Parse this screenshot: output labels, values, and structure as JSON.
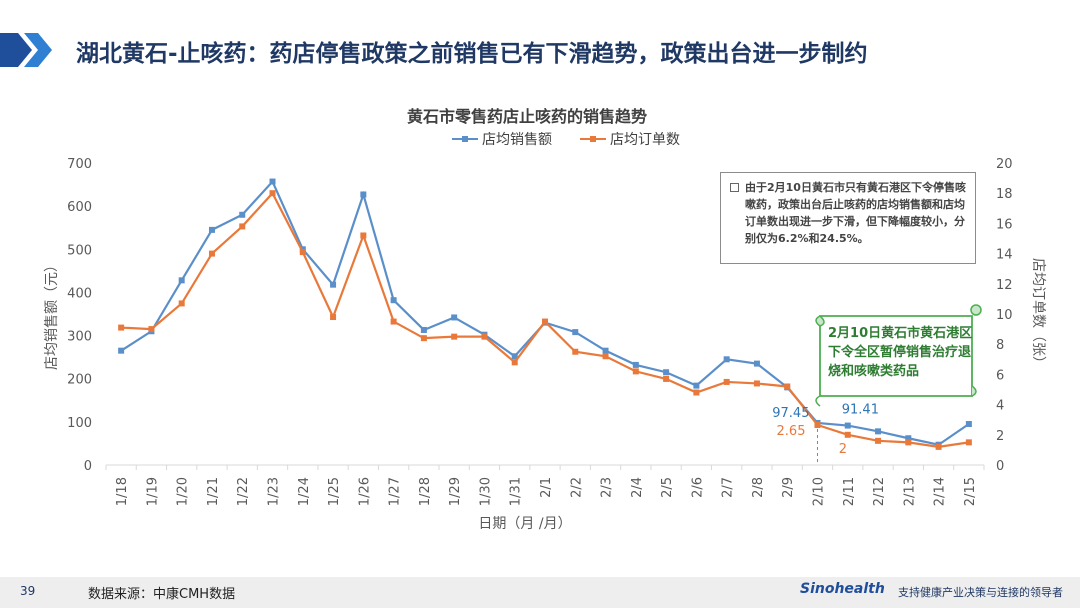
{
  "header": {
    "title": "湖北黄石-止咳药：药店停售政策之前销售已有下滑趋势，政策出台进一步制约"
  },
  "footer": {
    "page_number": "39",
    "source": "数据来源：中康CMH数据",
    "logo": "Sinohealth",
    "slogan": "支持健康产业决策与连接的领导者"
  },
  "callout": {
    "text": "由于2月10日黄石市只有黄石港区下令停售咳嗽药，政策出台后止咳药的店均销售额和店均订单数出现进一步下滑，但下降幅度较小，分别仅为6.2%和24.5%。"
  },
  "scroll_note": {
    "text": "2月10日黄石市黄石港区下令全区暂停销售治疗退烧和咳嗽类药品"
  },
  "chart_data": {
    "type": "line",
    "title": "黄石市零售药店止咳药的销售趋势",
    "xlabel": "日期（月 /月）",
    "ylabel": "店均销售额（元）",
    "y2label": "店均订单数（张）",
    "ylim": [
      0,
      700
    ],
    "y2lim": [
      0,
      20
    ],
    "yticks": [
      0,
      100,
      200,
      300,
      400,
      500,
      600,
      700
    ],
    "y2ticks": [
      0,
      2,
      4,
      6,
      8,
      10,
      12,
      14,
      16,
      18,
      20
    ],
    "legend_position": "top",
    "categories": [
      "1/18",
      "1/19",
      "1/20",
      "1/21",
      "1/22",
      "1/23",
      "1/24",
      "1/25",
      "1/26",
      "1/27",
      "1/28",
      "1/29",
      "1/30",
      "1/31",
      "2/1",
      "2/2",
      "2/3",
      "2/4",
      "2/5",
      "2/6",
      "2/7",
      "2/8",
      "2/9",
      "2/10",
      "2/11",
      "2/12",
      "2/13",
      "2/14",
      "2/15"
    ],
    "series": [
      {
        "name": "店均销售额",
        "axis": "left",
        "color": "#5b8fc9",
        "values": [
          265,
          310,
          428,
          545,
          580,
          657,
          500,
          418,
          627,
          382,
          313,
          342,
          302,
          252,
          330,
          308,
          265,
          232,
          215,
          184,
          245,
          235,
          180,
          97.45,
          91.41,
          78,
          62,
          47,
          95
        ]
      },
      {
        "name": "店均订单数",
        "axis": "right",
        "color": "#e9793a",
        "values": [
          9.1,
          9.0,
          10.7,
          14.0,
          15.8,
          18.0,
          14.1,
          9.8,
          15.2,
          9.5,
          8.4,
          8.5,
          8.5,
          6.8,
          9.5,
          7.5,
          7.2,
          6.2,
          5.7,
          4.8,
          5.5,
          5.4,
          5.2,
          2.65,
          2.0,
          1.6,
          1.5,
          1.2,
          1.5
        ]
      }
    ],
    "annotations": [
      {
        "label": "97.45",
        "category": "2/10",
        "series": "店均销售额"
      },
      {
        "label": "91.41",
        "category": "2/11",
        "series": "店均销售额"
      },
      {
        "label": "2.65",
        "category": "2/10",
        "series": "店均订单数"
      },
      {
        "label": "2",
        "category": "2/11",
        "series": "店均订单数"
      }
    ]
  }
}
